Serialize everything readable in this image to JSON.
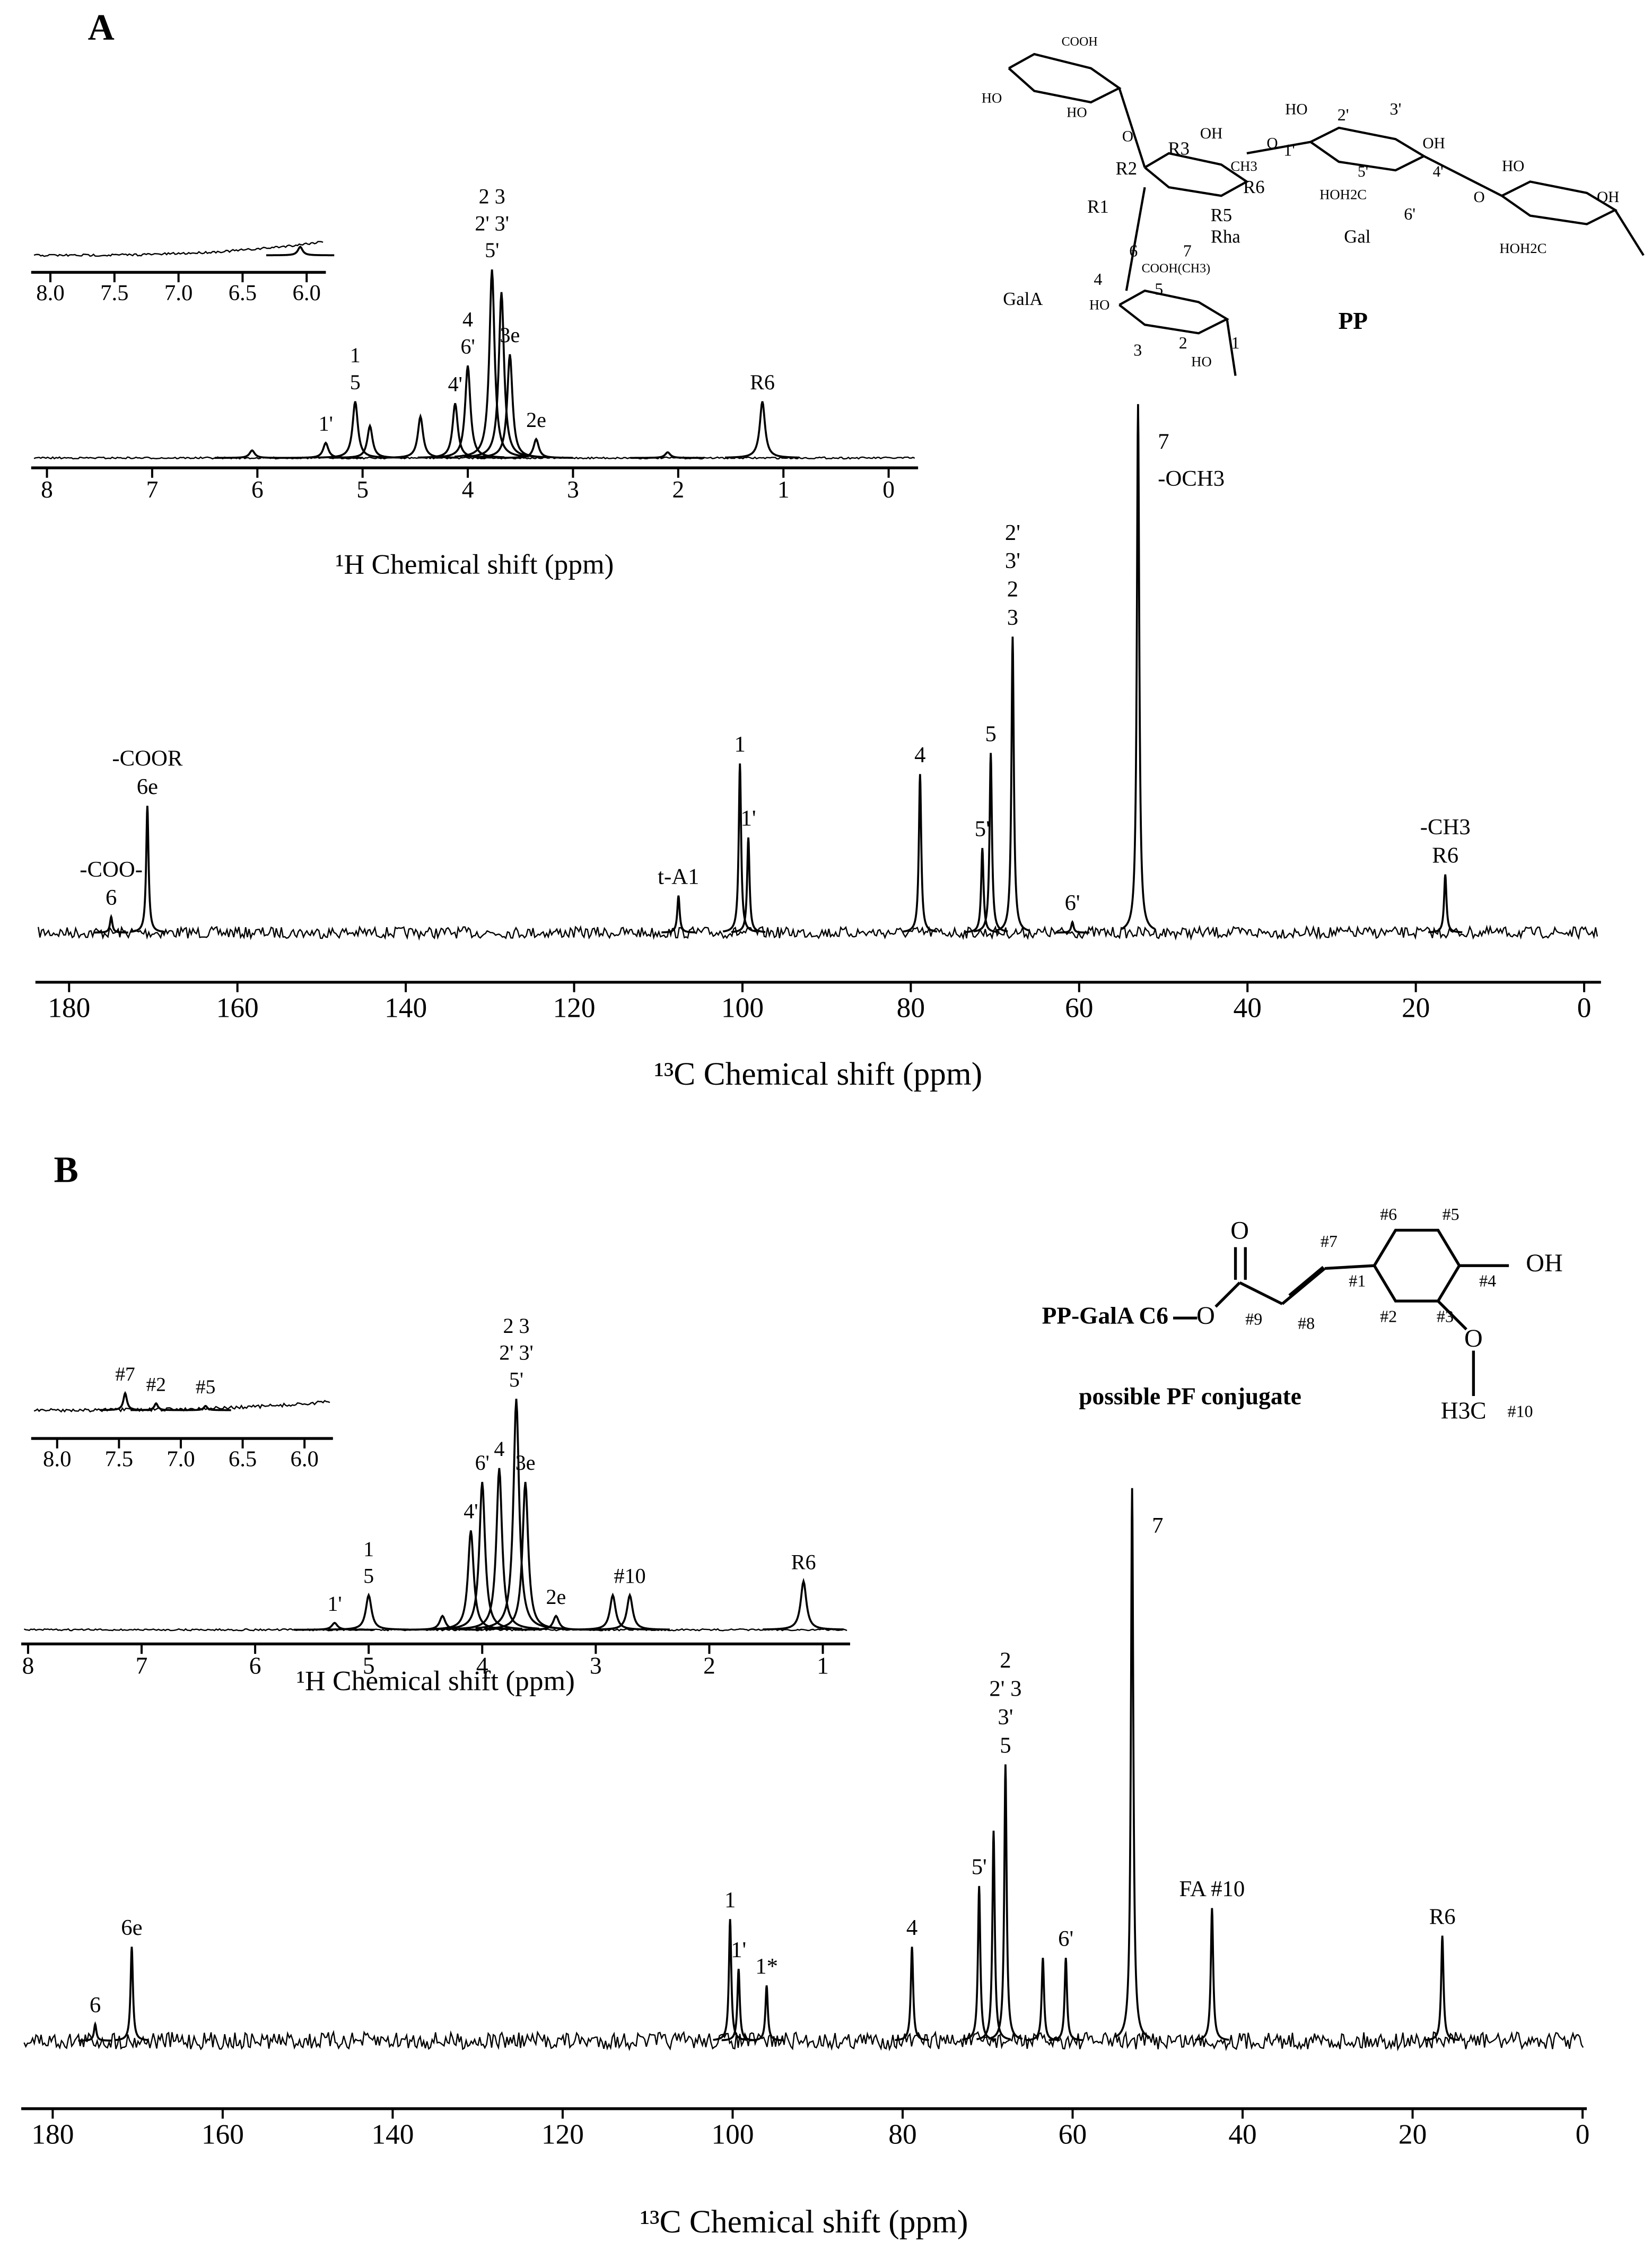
{
  "panel_labels": [
    "A",
    "B"
  ],
  "chart_data": [
    {
      "type": "spectrum",
      "xlabel": "¹³C Chemical shift (ppm)",
      "xlim": [
        184,
        -2
      ],
      "xticks": [
        180,
        160,
        140,
        120,
        100,
        80,
        60,
        40,
        20,
        0
      ],
      "ylim": [
        0,
        100
      ],
      "color": "#000000",
      "peaks": {
        "x": [
          175,
          170.7,
          107.6,
          100.3,
          99.3,
          78.9,
          71.5,
          70.5,
          67.9,
          60.8,
          53,
          16.5
        ],
        "values": [
          3,
          24,
          7,
          32,
          18,
          30,
          16,
          34,
          56,
          2,
          100,
          11
        ],
        "labels": [
          [
            "-COO-",
            "6"
          ],
          [
            "-COOR",
            "6e"
          ],
          [
            "t-A1"
          ],
          [
            "1"
          ],
          [
            "1'"
          ],
          [
            "4"
          ],
          [
            "5'"
          ],
          [
            "5"
          ],
          [
            "2'",
            "3'",
            "2",
            "3"
          ],
          [
            "6'"
          ],
          [
            "7",
            "-OCH3"
          ],
          [
            "-CH3",
            "R6"
          ]
        ]
      }
    },
    {
      "type": "spectrum",
      "xlabel": "¹H Chemical shift (ppm)",
      "xlim": [
        8.15,
        -0.28
      ],
      "xticks": [
        8,
        7,
        6,
        5,
        4,
        3,
        2,
        1,
        0
      ],
      "ylim": [
        0,
        100
      ],
      "color": "#000000",
      "peaks": {
        "x": [
          6.05,
          5.35,
          5.07,
          4.93,
          4.45,
          4.12,
          4.0,
          3.77,
          3.68,
          3.6,
          3.35,
          2.1,
          1.2
        ],
        "values": [
          4,
          8,
          30,
          17,
          22,
          29,
          49,
          100,
          88,
          55,
          10,
          3,
          30
        ],
        "labels": [
          [],
          [
            "1'"
          ],
          [
            "1",
            "5"
          ],
          [],
          [],
          [
            "4'"
          ],
          [
            "4",
            "6'"
          ],
          [
            "2 3",
            "2' 3'",
            "5'"
          ],
          [],
          [
            "3e"
          ],
          [
            "2e"
          ],
          [],
          [
            "R6"
          ]
        ]
      }
    },
    {
      "type": "spectrum",
      "xlim": [
        8.15,
        5.85
      ],
      "xticks": [
        {
          "value": 8,
          "label": "8.0"
        },
        {
          "value": 7.5,
          "label": "7.5"
        },
        {
          "value": 7,
          "label": "7.0"
        },
        {
          "value": 6.5,
          "label": "6.5"
        },
        {
          "value": 6,
          "label": "6.0"
        }
      ],
      "ylim": [
        0,
        100
      ],
      "color": "#000000",
      "peaks": {
        "x": [
          6.05
        ],
        "values": [
          15
        ],
        "labels": [
          []
        ]
      }
    },
    {
      "type": "spectrum",
      "xlabel": "¹³C Chemical shift (ppm)",
      "xlim": [
        183.7,
        -0.5
      ],
      "xticks": [
        180,
        160,
        140,
        120,
        100,
        80,
        60,
        40,
        20,
        0
      ],
      "ylim": [
        0,
        100
      ],
      "color": "#000000",
      "peaks": {
        "x": [
          175,
          170.7,
          100.3,
          99.3,
          96,
          78.9,
          71,
          69.3,
          67.9,
          63.5,
          60.8,
          53,
          43.6,
          16.5
        ],
        "values": [
          3,
          17,
          22,
          13,
          10,
          17,
          28,
          38,
          50,
          15,
          15,
          100,
          24,
          19
        ],
        "labels": [
          [
            "6"
          ],
          [
            "6e"
          ],
          [
            "1"
          ],
          [
            "1'"
          ],
          [
            "1*"
          ],
          [
            "4"
          ],
          [
            "5'"
          ],
          [],
          [
            "2",
            "2' 3",
            "3'",
            "5"
          ],
          [],
          [
            "6'"
          ],
          [
            "7"
          ],
          [
            "FA #10"
          ],
          [
            "R6"
          ]
        ]
      }
    },
    {
      "type": "spectrum",
      "xlabel": "¹H Chemical shift (ppm)",
      "xlim": [
        8.06,
        0.76
      ],
      "xticks": [
        8,
        7,
        6,
        5,
        4,
        3,
        2,
        1
      ],
      "ylim": [
        0,
        100
      ],
      "color": "#000000",
      "peaks": {
        "x": [
          5.3,
          5.0,
          4.35,
          4.1,
          4.0,
          3.85,
          3.7,
          3.62,
          3.35,
          2.85,
          2.7,
          1.17
        ],
        "values": [
          3,
          15,
          6,
          43,
          64,
          70,
          100,
          64,
          6,
          15,
          15,
          21
        ],
        "labels": [
          [
            "1'"
          ],
          [
            "1",
            "5"
          ],
          [],
          [
            "4'"
          ],
          [
            "6'"
          ],
          [
            "4"
          ],
          [
            "2 3",
            "2' 3'",
            "5'"
          ],
          [
            "3e"
          ],
          [
            "2e"
          ],
          [],
          [
            "#10"
          ],
          [
            "R6"
          ]
        ]
      }
    },
    {
      "type": "spectrum",
      "xlim": [
        8.21,
        5.77
      ],
      "xticks": [
        {
          "value": 8,
          "label": "8.0"
        },
        {
          "value": 7.5,
          "label": "7.5"
        },
        {
          "value": 7,
          "label": "7.0"
        },
        {
          "value": 6.5,
          "label": "6.5"
        },
        {
          "value": 6,
          "label": "6.0"
        }
      ],
      "ylim": [
        0,
        100
      ],
      "color": "#000000",
      "peaks": {
        "x": [
          7.45,
          7.2,
          6.8
        ],
        "values": [
          20,
          8,
          5
        ],
        "labels": [
          [
            "#7"
          ],
          [
            "#2"
          ],
          [
            "#5"
          ]
        ]
      }
    }
  ],
  "structures": {
    "A": [
      "COOH",
      "HO",
      "HO",
      "OH",
      "R3",
      "R2",
      "CH3",
      "R6",
      "R5",
      "Rha",
      "R1",
      "HO",
      "2'",
      "3'",
      "OH",
      "1'",
      "5'",
      "HOH2C",
      "4'",
      "6'",
      "Gal",
      "HO",
      "OH",
      "HOH2C",
      "GalA",
      "6",
      "7",
      "COOH(CH3)",
      "4",
      "HO",
      "5",
      "3",
      "2",
      "HO",
      "1",
      "PP",
      "O",
      "O",
      "O"
    ],
    "B": [
      "PP-GalA C6",
      "O",
      "O",
      "#9",
      "#8",
      "#7",
      "#6",
      "#5",
      "#1",
      "#2",
      "#3",
      "#4",
      "OH",
      "O",
      "H3C",
      "#10",
      "possible PF conjugate"
    ]
  }
}
